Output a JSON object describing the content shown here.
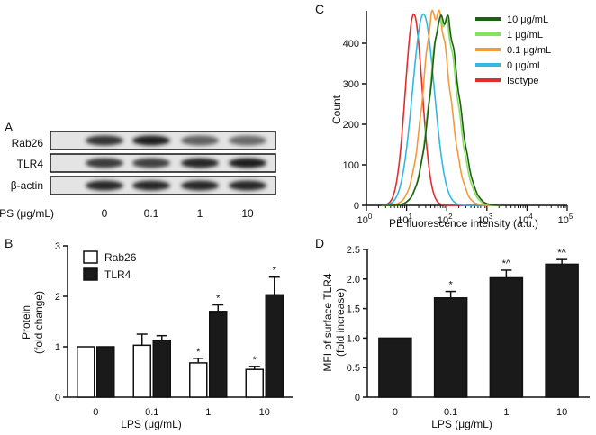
{
  "panel_letters": {
    "a": "A",
    "b": "B",
    "c": "C",
    "d": "D"
  },
  "blot": {
    "rows": [
      "Rab26",
      "TLR4",
      "β-actin"
    ],
    "xaxis_label": "LPS (μg/mL)",
    "lanes": [
      "0",
      "0.1",
      "1",
      "10"
    ],
    "band_intensity": {
      "Rab26": [
        0.8,
        0.9,
        0.55,
        0.5
      ],
      "TLR4": [
        0.75,
        0.72,
        0.85,
        0.9
      ],
      "β-actin": [
        0.85,
        0.85,
        0.85,
        0.85
      ]
    }
  },
  "chart_data": [
    {
      "id": "B",
      "type": "bar",
      "title": "",
      "xlabel": "LPS (μg/mL)",
      "ylabel": "Protein\n(fold change)",
      "categories": [
        "0",
        "0.1",
        "1",
        "10"
      ],
      "ylim": [
        0,
        3
      ],
      "yticks": [
        0,
        1,
        2,
        3
      ],
      "legend_position": "top-left",
      "series": [
        {
          "name": "Rab26",
          "color": "#ffffff",
          "values": [
            1.0,
            1.03,
            0.68,
            0.55
          ],
          "errors": [
            0,
            0.22,
            0.09,
            0.06
          ],
          "sig": [
            "",
            "",
            "*",
            "*"
          ]
        },
        {
          "name": "TLR4",
          "color": "#1a1a1a",
          "values": [
            1.0,
            1.13,
            1.7,
            2.03
          ],
          "errors": [
            0,
            0.09,
            0.13,
            0.35
          ],
          "sig": [
            "",
            "",
            "*",
            "*"
          ]
        }
      ]
    },
    {
      "id": "C",
      "type": "line",
      "title": "",
      "xlabel": "PE fluorescence intensity (a.u.)",
      "ylabel": "Count",
      "xscale": "log",
      "xlim_exp": [
        0,
        5
      ],
      "xtick_base": "10",
      "xtick_exps": [
        "0",
        "1",
        "2",
        "3",
        "4",
        "5"
      ],
      "ylim": [
        0,
        480
      ],
      "yticks": [
        0,
        100,
        200,
        300,
        400
      ],
      "legend_position": "top-right",
      "series": [
        {
          "name": "10 μg/mL",
          "color": "#1f5e16",
          "peak_log10": 1.96,
          "spread": 0.34,
          "peak_count": 458,
          "shoulder": 0.9
        },
        {
          "name": "1 μg/mL",
          "color": "#86e25a",
          "peak_log10": 1.93,
          "spread": 0.33,
          "peak_count": 452,
          "shoulder": 0.85
        },
        {
          "name": "0.1 μg/mL",
          "color": "#f39a3c",
          "peak_log10": 1.76,
          "spread": 0.32,
          "peak_count": 470,
          "shoulder": 0.8
        },
        {
          "name": "0 μg/mL",
          "color": "#33b8e2",
          "peak_log10": 1.42,
          "spread": 0.27,
          "peak_count": 472,
          "shoulder": 0.0
        },
        {
          "name": "Isotype",
          "color": "#e02e2e",
          "peak_log10": 1.18,
          "spread": 0.21,
          "peak_count": 472,
          "shoulder": 0.0
        }
      ]
    },
    {
      "id": "D",
      "type": "bar",
      "title": "",
      "xlabel": "LPS (μg/mL)",
      "ylabel": "MFI of surface TLR4\n(fold increase)",
      "categories": [
        "0",
        "0.1",
        "1",
        "10"
      ],
      "ylim": [
        0,
        2.5
      ],
      "yticks": [
        "0",
        "0.5",
        "1.0",
        "1.5",
        "2.0",
        "2.5"
      ],
      "series": [
        {
          "name": "MFI",
          "color": "#1a1a1a",
          "values": [
            1.0,
            1.68,
            2.02,
            2.25
          ],
          "errors": [
            0,
            0.11,
            0.13,
            0.08
          ],
          "sig": [
            "",
            "*",
            "*^",
            "*^"
          ]
        }
      ]
    }
  ]
}
